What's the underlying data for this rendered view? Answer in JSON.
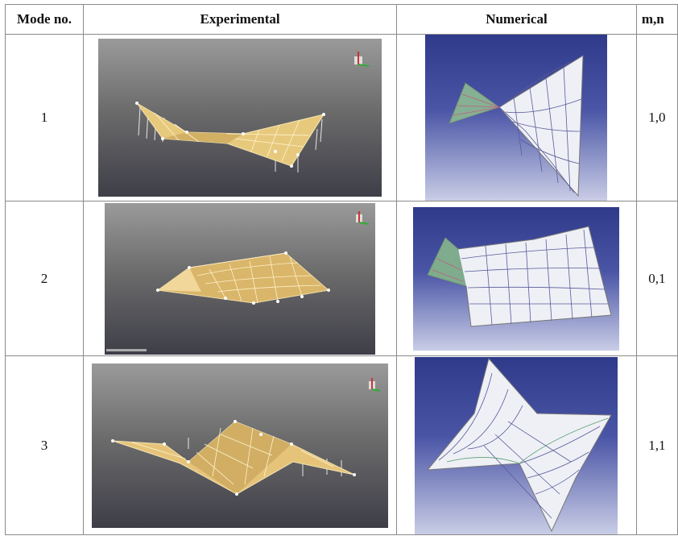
{
  "table": {
    "headers": [
      "Mode no.",
      "Experimental",
      "Numerical",
      "m,n"
    ],
    "rows": [
      {
        "mode": "1",
        "mn": "1,0"
      },
      {
        "mode": "2",
        "mn": "0,1"
      },
      {
        "mode": "3",
        "mn": "1,1"
      }
    ]
  },
  "icons": {
    "experimental": "axis-triad-icon"
  }
}
